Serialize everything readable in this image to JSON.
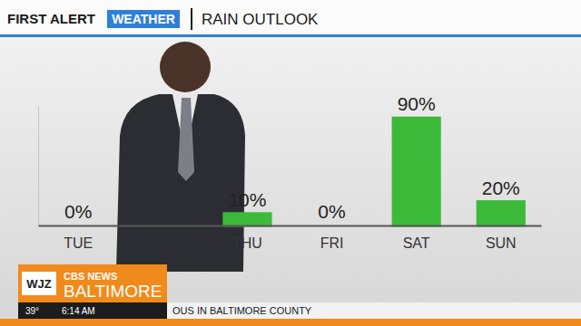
{
  "chart_data": {
    "type": "bar",
    "title": "RAIN OUTLOOK",
    "categories": [
      "TUE",
      null,
      "THU",
      "FRI",
      "SAT",
      "SUN"
    ],
    "values": [
      0,
      null,
      10,
      0,
      90,
      20
    ],
    "value_labels": [
      "0%",
      null,
      "10%",
      "0%",
      "90%",
      "20%"
    ],
    "color": "#3dba3a",
    "ylim": [
      0,
      100
    ],
    "data_labels": true,
    "tick_labels": "x",
    "grid": false
  },
  "header": {
    "brand": "FIRST ALERT",
    "brand_tag": "WEATHER"
  },
  "station": {
    "call_sign": "WJZ",
    "network": "CBS NEWS",
    "city": "BALTIMORE",
    "temperature": "39°",
    "time": "6:14 AM",
    "ticker": "OUS IN BALTIMORE COUNTY"
  }
}
